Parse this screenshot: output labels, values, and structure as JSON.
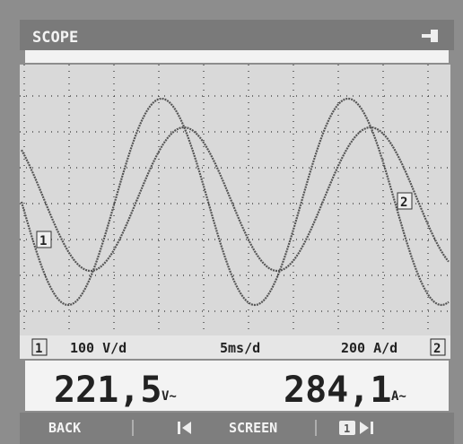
{
  "header": {
    "title": "SCOPE"
  },
  "markers": {
    "ch1": "1",
    "ch2": "2"
  },
  "scale": {
    "ch1_badge": "1",
    "ch1_scale": "100 V/d",
    "time_scale": "5ms/d",
    "ch2_scale": "200 A/d",
    "ch2_badge": "2"
  },
  "readings": [
    {
      "value": "221,5",
      "unit": "V~"
    },
    {
      "value": "284,1",
      "unit": "A~"
    }
  ],
  "footer": {
    "back": "BACK",
    "screen": "SCREEN",
    "channel": "1"
  }
}
